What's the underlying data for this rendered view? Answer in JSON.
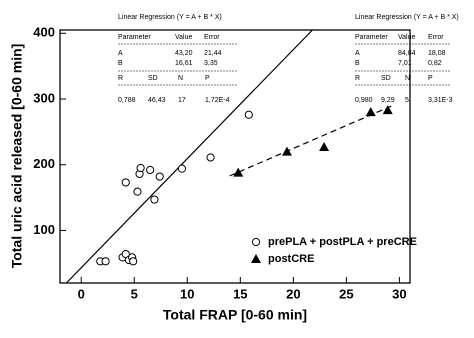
{
  "chart_data": {
    "type": "scatter",
    "xlabel": "Total FRAP [0-60 min]",
    "ylabel": "Total uric acid released [0-60 min]",
    "xlim": [
      -2,
      31
    ],
    "ylim": [
      20,
      405
    ],
    "xticks": [
      0,
      5,
      10,
      15,
      20,
      25,
      30
    ],
    "yticks": [
      100,
      200,
      300,
      400
    ],
    "legend": "lower right",
    "series": [
      {
        "name": "prePLA + postPLA + preCRE",
        "marker": "circle",
        "color": "#000000",
        "x": [
          4.2,
          5.5,
          5.6,
          6.5,
          7.4,
          5.3,
          6.9,
          9.5,
          12.2,
          15.8,
          1.8,
          2.3,
          3.9,
          4.2,
          4.5,
          4.8,
          4.9
        ],
        "values": [
          173,
          186,
          195,
          192,
          182,
          159,
          147,
          194,
          211,
          276,
          53,
          53,
          59,
          64,
          55,
          59,
          53
        ]
      },
      {
        "name": "postCRE",
        "marker": "triangle",
        "color": "#000000",
        "x": [
          14.8,
          19.4,
          22.9,
          27.3,
          28.9
        ],
        "values": [
          188,
          220,
          227,
          280,
          283
        ]
      }
    ],
    "lines": [
      {
        "style": "solid",
        "x": [
          -1.4,
          21.8
        ],
        "values": [
          20,
          405
        ]
      },
      {
        "style": "dashed",
        "x": [
          14,
          29.5
        ],
        "values": [
          183,
          291
        ]
      }
    ],
    "tables": [
      {
        "title": "Linear Regression (Y = A + B * X)",
        "header": [
          "Parameter",
          "Value",
          "Error"
        ],
        "rows": [
          [
            "A",
            "43,20",
            "21,44"
          ],
          [
            "B",
            "16,61",
            "3,35"
          ]
        ],
        "stats_header": [
          "R",
          "SD",
          "N",
          "P"
        ],
        "stats": [
          "0,788",
          "46,43",
          "17",
          "1,72E-4"
        ]
      },
      {
        "title": "Linear Regression (Y = A + B * X)",
        "header": [
          "Parameter",
          "Value",
          "Error"
        ],
        "rows": [
          [
            "A",
            "84,84",
            "18,08"
          ],
          [
            "B",
            "7,01",
            "0,82"
          ]
        ],
        "stats_header": [
          "R",
          "SD",
          "N",
          "P"
        ],
        "stats": [
          "0,980",
          "9,29",
          "5",
          "3,31E-3"
        ]
      }
    ]
  }
}
